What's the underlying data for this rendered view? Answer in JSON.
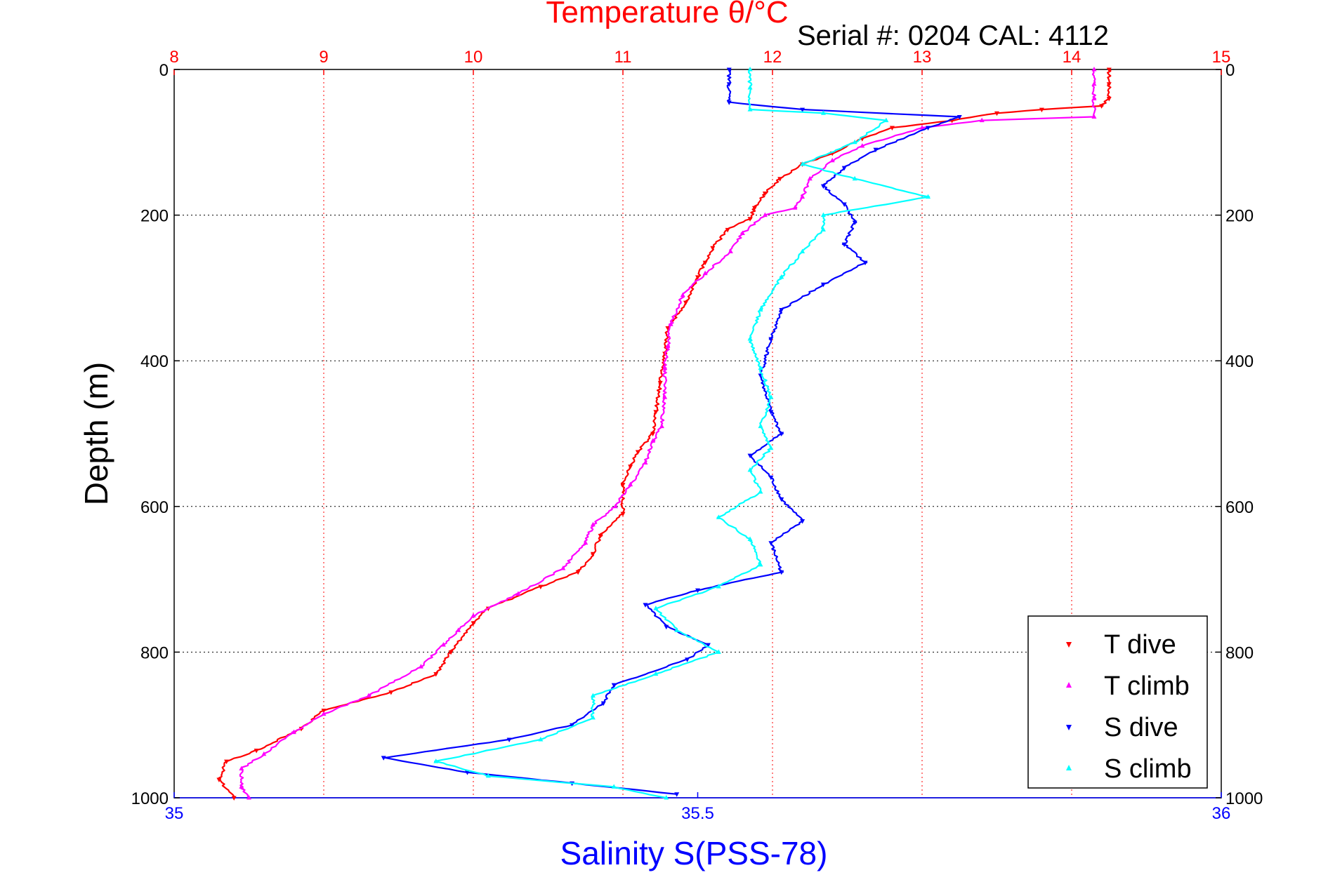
{
  "chart_data": {
    "type": "scatter",
    "title": "Temperature θ/°C",
    "subtitle": "Serial #: 0204  CAL: 4112",
    "ylabel": "Depth (m)",
    "xlabel": "Salinity S(PSS-78)",
    "y_axis": {
      "range": [
        0,
        1000
      ],
      "reversed": true,
      "ticks": [
        "0",
        "200",
        "400",
        "600",
        "800",
        "1000"
      ]
    },
    "temperature_axis": {
      "position": "top",
      "range": [
        8,
        15
      ],
      "ticks": [
        "8",
        "9",
        "10",
        "11",
        "12",
        "13",
        "14",
        "15"
      ]
    },
    "salinity_axis": {
      "position": "bottom",
      "range": [
        35,
        36
      ],
      "ticks": [
        "35",
        "35.5",
        "36"
      ]
    },
    "grid": true,
    "legend": {
      "placement": "bottom-right"
    },
    "colors": {
      "temperature_axis": "#ff0000",
      "salinity_axis": "#0000ff",
      "grid_temperature": "#ff0000",
      "grid_depth": "#000000"
    },
    "series": [
      {
        "name": "T dive",
        "color": "#ff0000",
        "axis": "temperature",
        "points": [
          [
            14.25,
            0
          ],
          [
            14.25,
            20
          ],
          [
            14.25,
            40
          ],
          [
            14.2,
            50
          ],
          [
            13.8,
            55
          ],
          [
            13.5,
            60
          ],
          [
            13.2,
            70
          ],
          [
            12.8,
            80
          ],
          [
            12.6,
            95
          ],
          [
            12.4,
            115
          ],
          [
            12.2,
            130
          ],
          [
            12.05,
            150
          ],
          [
            11.95,
            170
          ],
          [
            11.88,
            190
          ],
          [
            11.85,
            205
          ],
          [
            11.7,
            220
          ],
          [
            11.6,
            245
          ],
          [
            11.55,
            265
          ],
          [
            11.5,
            285
          ],
          [
            11.42,
            320
          ],
          [
            11.3,
            355
          ],
          [
            11.28,
            390
          ],
          [
            11.25,
            430
          ],
          [
            11.22,
            470
          ],
          [
            11.2,
            500
          ],
          [
            11.1,
            525
          ],
          [
            11.05,
            545
          ],
          [
            11.0,
            570
          ],
          [
            11.0,
            610
          ],
          [
            10.85,
            640
          ],
          [
            10.8,
            665
          ],
          [
            10.7,
            690
          ],
          [
            10.45,
            710
          ],
          [
            10.1,
            740
          ],
          [
            10.0,
            760
          ],
          [
            9.85,
            800
          ],
          [
            9.75,
            830
          ],
          [
            9.45,
            855
          ],
          [
            9.0,
            880
          ],
          [
            8.85,
            905
          ],
          [
            8.55,
            935
          ],
          [
            8.35,
            950
          ],
          [
            8.3,
            975
          ],
          [
            8.4,
            1000
          ]
        ]
      },
      {
        "name": "T climb",
        "color": "#ff00ff",
        "axis": "temperature",
        "points": [
          [
            14.15,
            0
          ],
          [
            14.15,
            20
          ],
          [
            14.15,
            40
          ],
          [
            14.15,
            65
          ],
          [
            13.4,
            70
          ],
          [
            13.0,
            80
          ],
          [
            12.6,
            105
          ],
          [
            12.4,
            125
          ],
          [
            12.25,
            150
          ],
          [
            12.2,
            175
          ],
          [
            12.15,
            190
          ],
          [
            11.95,
            200
          ],
          [
            11.8,
            225
          ],
          [
            11.72,
            250
          ],
          [
            11.55,
            280
          ],
          [
            11.4,
            310
          ],
          [
            11.32,
            350
          ],
          [
            11.3,
            380
          ],
          [
            11.28,
            410
          ],
          [
            11.28,
            450
          ],
          [
            11.26,
            490
          ],
          [
            11.2,
            510
          ],
          [
            11.15,
            540
          ],
          [
            11.05,
            570
          ],
          [
            10.95,
            600
          ],
          [
            10.8,
            625
          ],
          [
            10.75,
            650
          ],
          [
            10.6,
            685
          ],
          [
            10.3,
            720
          ],
          [
            10.0,
            750
          ],
          [
            9.9,
            770
          ],
          [
            9.8,
            790
          ],
          [
            9.65,
            820
          ],
          [
            9.3,
            860
          ],
          [
            9.0,
            885
          ],
          [
            8.8,
            910
          ],
          [
            8.6,
            940
          ],
          [
            8.45,
            960
          ],
          [
            8.45,
            985
          ],
          [
            8.5,
            1000
          ]
        ]
      },
      {
        "name": "S dive",
        "color": "#0000ff",
        "axis": "salinity",
        "points": [
          [
            35.53,
            0
          ],
          [
            35.53,
            20
          ],
          [
            35.53,
            45
          ],
          [
            35.6,
            55
          ],
          [
            35.75,
            65
          ],
          [
            35.72,
            80
          ],
          [
            35.67,
            110
          ],
          [
            35.64,
            135
          ],
          [
            35.62,
            160
          ],
          [
            35.64,
            185
          ],
          [
            35.65,
            210
          ],
          [
            35.64,
            240
          ],
          [
            35.66,
            265
          ],
          [
            35.62,
            295
          ],
          [
            35.58,
            330
          ],
          [
            35.57,
            370
          ],
          [
            35.56,
            420
          ],
          [
            35.57,
            470
          ],
          [
            35.58,
            500
          ],
          [
            35.55,
            530
          ],
          [
            35.57,
            560
          ],
          [
            35.58,
            590
          ],
          [
            35.6,
            620
          ],
          [
            35.57,
            650
          ],
          [
            35.58,
            690
          ],
          [
            35.5,
            715
          ],
          [
            35.45,
            735
          ],
          [
            35.47,
            765
          ],
          [
            35.51,
            790
          ],
          [
            35.49,
            810
          ],
          [
            35.42,
            845
          ],
          [
            35.41,
            870
          ],
          [
            35.38,
            900
          ],
          [
            35.32,
            920
          ],
          [
            35.2,
            945
          ],
          [
            35.28,
            965
          ],
          [
            35.38,
            980
          ],
          [
            35.48,
            995
          ]
        ]
      },
      {
        "name": "S climb",
        "color": "#00ffff",
        "axis": "salinity",
        "points": [
          [
            35.55,
            0
          ],
          [
            35.55,
            25
          ],
          [
            35.55,
            55
          ],
          [
            35.62,
            60
          ],
          [
            35.68,
            70
          ],
          [
            35.65,
            100
          ],
          [
            35.6,
            130
          ],
          [
            35.65,
            150
          ],
          [
            35.72,
            175
          ],
          [
            35.62,
            200
          ],
          [
            35.62,
            220
          ],
          [
            35.6,
            250
          ],
          [
            35.58,
            285
          ],
          [
            35.56,
            330
          ],
          [
            35.55,
            370
          ],
          [
            35.56,
            410
          ],
          [
            35.57,
            450
          ],
          [
            35.56,
            490
          ],
          [
            35.57,
            520
          ],
          [
            35.55,
            550
          ],
          [
            35.56,
            580
          ],
          [
            35.52,
            615
          ],
          [
            35.55,
            645
          ],
          [
            35.56,
            680
          ],
          [
            35.52,
            710
          ],
          [
            35.46,
            740
          ],
          [
            35.48,
            770
          ],
          [
            35.52,
            800
          ],
          [
            35.46,
            830
          ],
          [
            35.4,
            860
          ],
          [
            35.4,
            890
          ],
          [
            35.35,
            920
          ],
          [
            35.25,
            950
          ],
          [
            35.3,
            970
          ],
          [
            35.42,
            985
          ],
          [
            35.47,
            1000
          ]
        ]
      }
    ]
  }
}
